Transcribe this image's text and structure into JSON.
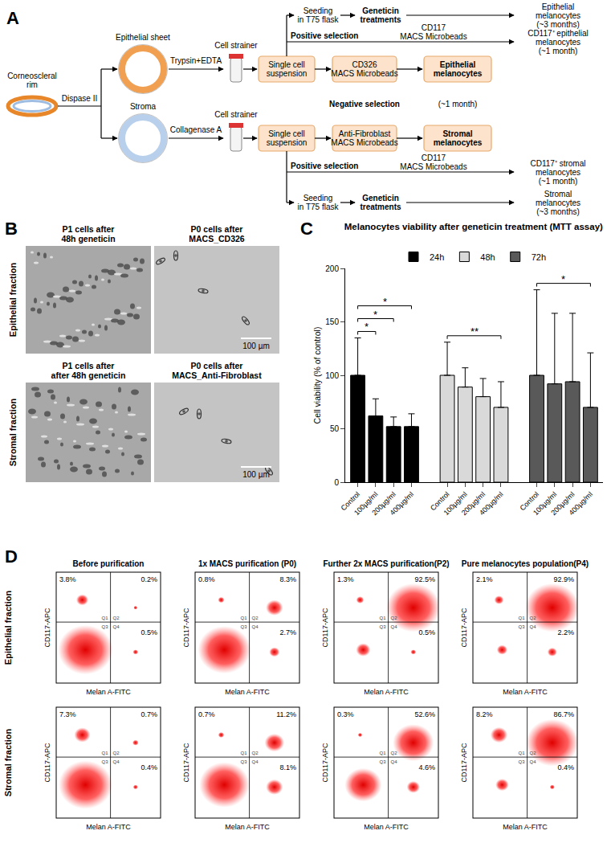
{
  "panel_labels": [
    "A",
    "B",
    "C",
    "D"
  ],
  "fractions": [
    "Epithelial fraction",
    "Stromal fraction"
  ],
  "diagram": {
    "source": [
      "Corneoscleral",
      "rim"
    ],
    "digestion": "Dispase II",
    "strainer": "Cell strainer",
    "suspension": [
      "Single cell",
      "suspension"
    ],
    "negative_selection": "Negative selection",
    "negative_duration": "(~1 month)",
    "positive_selection": "Positive selection",
    "positive_beads": [
      "CD117",
      "MACS Microbeads"
    ],
    "seeding": [
      "Seeding",
      "in T75 flask"
    ],
    "geneticin": [
      "Geneticin",
      "treatments"
    ],
    "rows": [
      {
        "tissue": "Epithelial sheet",
        "enzyme": "Trypsin+EDTA",
        "negative_beads": [
          "CD326",
          "MACS Microbeads"
        ],
        "negative_result": [
          "Epithelial",
          "melanocytes"
        ],
        "positive_result": [
          "CD117⁺ epithelial",
          "melanocytes",
          "(~1 month)"
        ],
        "geneticin_result": [
          "Epithelial",
          "melanocytes",
          "(~3 months)"
        ]
      },
      {
        "tissue": "Stroma",
        "enzyme": "Collagenase A",
        "negative_beads": [
          "Anti-Fibroblast",
          "MACS Microbeads"
        ],
        "negative_result": [
          "Stromal",
          "melanocytes"
        ],
        "positive_result": [
          "CD117⁺ stromal",
          "melanocytes",
          "(~1 month)"
        ],
        "geneticin_result": [
          "Stromal",
          "melanocytes",
          "(~3 months)"
        ]
      }
    ]
  },
  "micrographs": {
    "rows": [
      {
        "panels": [
          {
            "caption": [
              "P1 cells after",
              "48h geneticin"
            ]
          },
          {
            "caption": [
              "P0 cells after",
              "MACS_CD326"
            ],
            "scale_bar": "100 µm"
          }
        ]
      },
      {
        "panels": [
          {
            "caption": [
              "P1 cells after",
              "after 48h geneticin"
            ]
          },
          {
            "caption": [
              "P0 cells after",
              "MACS_Anti-Fibroblast"
            ],
            "scale_bar": "100 µm"
          }
        ]
      }
    ]
  },
  "chart_data": {
    "type": "bar",
    "title": "Melanocytes viability after geneticin treatment (MTT assay)",
    "y_label": "Cell viability (% of control)",
    "categories": [
      "Control",
      "100µg/ml",
      "200µg/ml",
      "400µg/ml"
    ],
    "series": [
      {
        "name": "24h",
        "color": "#000000",
        "values": [
          100,
          62,
          52,
          52
        ],
        "errors": [
          35,
          16,
          9,
          12
        ]
      },
      {
        "name": "48h",
        "color": "#d9d9d9",
        "values": [
          100,
          89,
          80,
          70
        ],
        "errors": [
          31,
          18,
          17,
          24
        ]
      },
      {
        "name": "72h",
        "color": "#595959",
        "values": [
          100,
          92,
          94,
          70
        ],
        "errors": [
          80,
          66,
          64,
          51
        ]
      }
    ],
    "ylim": [
      0,
      200
    ],
    "yticks": [
      0,
      50,
      100,
      150,
      200
    ],
    "legend": "top",
    "significance": [
      {
        "series": "24h",
        "from": "Control",
        "to": "100µg/ml",
        "label": "*"
      },
      {
        "series": "24h",
        "from": "Control",
        "to": "200µg/ml",
        "label": "*"
      },
      {
        "series": "24h",
        "from": "Control",
        "to": "400µg/ml",
        "label": "*"
      },
      {
        "series": "48h",
        "from": "Control",
        "to": "400µg/ml",
        "label": "**"
      },
      {
        "series": "72h",
        "from": "Control",
        "to": "400µg/ml",
        "label": "*"
      }
    ]
  },
  "flow_cytometry": {
    "x_label": "Melan A-FITC",
    "y_label": "CD117-APC",
    "quadrant_names": [
      "Q1",
      "Q2",
      "Q3",
      "Q4"
    ],
    "columns": [
      "Before purification",
      "1x MACS purification (P0)",
      "Further 2x MACS purification(P2)",
      "Pure melanocytes population(P4)"
    ],
    "rows": [
      {
        "plots": [
          {
            "Q1": "3.8%",
            "Q2": "0.2%",
            "Q4": "0.5%"
          },
          {
            "Q1": "0.8%",
            "Q2": "8.3%",
            "Q4": "2.7%"
          },
          {
            "Q1": "1.3%",
            "Q2": "92.5%",
            "Q4": "0.5%"
          },
          {
            "Q1": "2.1%",
            "Q2": "92.9%",
            "Q4": "2.2%"
          }
        ]
      },
      {
        "plots": [
          {
            "Q1": "7.3%",
            "Q2": "0.7%",
            "Q4": "0.4%"
          },
          {
            "Q1": "0.7%",
            "Q2": "11.2%",
            "Q4": "8.1%"
          },
          {
            "Q1": "0.3%",
            "Q2": "52.6%",
            "Q4": "4.6%"
          },
          {
            "Q1": "8.2%",
            "Q2": "86.7%",
            "Q4": "0.4%"
          }
        ]
      }
    ]
  }
}
